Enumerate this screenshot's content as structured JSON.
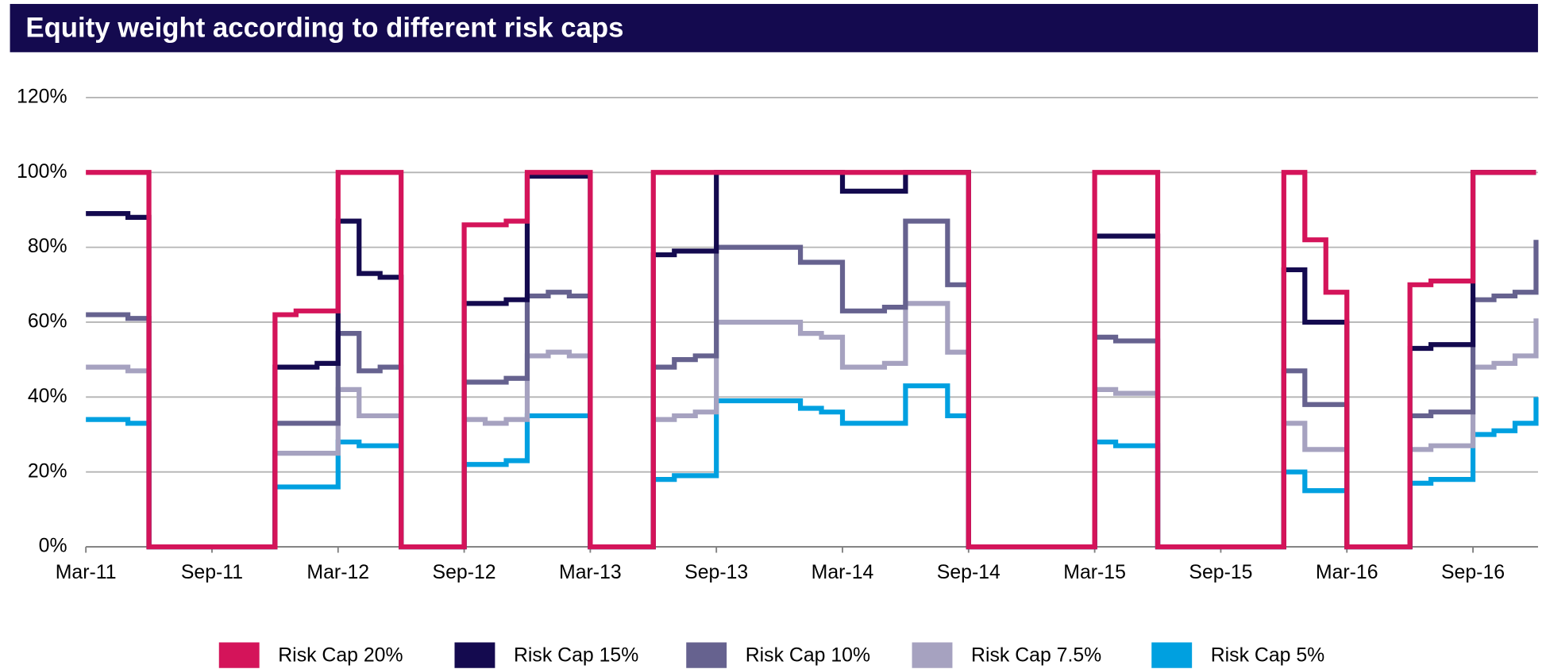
{
  "chart_data": {
    "type": "step-line",
    "title": "Equity weight according to different risk caps",
    "x": [
      "2011-03",
      "2011-04",
      "2011-05",
      "2011-06",
      "2011-07",
      "2011-08",
      "2011-09",
      "2011-10",
      "2011-11",
      "2011-12",
      "2012-01",
      "2012-02",
      "2012-03",
      "2012-04",
      "2012-05",
      "2012-06",
      "2012-07",
      "2012-08",
      "2012-09",
      "2012-10",
      "2012-11",
      "2012-12",
      "2013-01",
      "2013-02",
      "2013-03",
      "2013-04",
      "2013-05",
      "2013-06",
      "2013-07",
      "2013-08",
      "2013-09",
      "2013-10",
      "2013-11",
      "2013-12",
      "2014-01",
      "2014-02",
      "2014-03",
      "2014-04",
      "2014-05",
      "2014-06",
      "2014-07",
      "2014-08",
      "2014-09",
      "2014-10",
      "2014-11",
      "2014-12",
      "2015-01",
      "2015-02",
      "2015-03",
      "2015-04",
      "2015-05",
      "2015-06",
      "2015-07",
      "2015-08",
      "2015-09",
      "2015-10",
      "2015-11",
      "2015-12",
      "2016-01",
      "2016-02",
      "2016-03",
      "2016-04",
      "2016-05",
      "2016-06",
      "2016-07",
      "2016-08",
      "2016-09",
      "2016-10",
      "2016-11",
      "2016-12"
    ],
    "series": [
      {
        "name": "Risk Cap 20%",
        "color": "#d4145a",
        "values": [
          100,
          100,
          100,
          0,
          0,
          0,
          0,
          0,
          0,
          62,
          63,
          63,
          100,
          100,
          100,
          0,
          0,
          0,
          86,
          86,
          87,
          100,
          100,
          100,
          0,
          0,
          0,
          100,
          100,
          100,
          100,
          100,
          100,
          100,
          100,
          100,
          100,
          100,
          100,
          100,
          100,
          100,
          0,
          0,
          0,
          0,
          0,
          0,
          100,
          100,
          100,
          0,
          0,
          0,
          0,
          0,
          0,
          100,
          82,
          68,
          0,
          0,
          0,
          70,
          71,
          71,
          100,
          100,
          100,
          100
        ]
      },
      {
        "name": "Risk Cap 15%",
        "color": "#140a4f",
        "values": [
          89,
          89,
          88,
          0,
          0,
          0,
          0,
          0,
          0,
          48,
          48,
          49,
          87,
          73,
          72,
          0,
          0,
          0,
          65,
          65,
          66,
          99,
          99,
          99,
          0,
          0,
          0,
          78,
          79,
          79,
          100,
          100,
          100,
          100,
          100,
          100,
          95,
          95,
          95,
          100,
          100,
          100,
          0,
          0,
          0,
          0,
          0,
          0,
          83,
          83,
          83,
          0,
          0,
          0,
          0,
          0,
          0,
          74,
          60,
          60,
          0,
          0,
          0,
          53,
          54,
          54,
          100,
          100,
          100,
          100
        ]
      },
      {
        "name": "Risk Cap 10%",
        "color": "#66628f",
        "values": [
          62,
          62,
          61,
          0,
          0,
          0,
          0,
          0,
          0,
          33,
          33,
          33,
          57,
          47,
          48,
          0,
          0,
          0,
          44,
          44,
          45,
          67,
          68,
          67,
          0,
          0,
          0,
          48,
          50,
          51,
          80,
          80,
          80,
          80,
          76,
          76,
          63,
          63,
          64,
          87,
          87,
          70,
          0,
          0,
          0,
          0,
          0,
          0,
          56,
          55,
          55,
          0,
          0,
          0,
          0,
          0,
          0,
          47,
          38,
          38,
          0,
          0,
          0,
          35,
          36,
          36,
          66,
          67,
          68,
          82
        ]
      },
      {
        "name": "Risk Cap 7.5%",
        "color": "#a6a2c0",
        "values": [
          48,
          48,
          47,
          0,
          0,
          0,
          0,
          0,
          0,
          25,
          25,
          25,
          42,
          35,
          35,
          0,
          0,
          0,
          34,
          33,
          34,
          51,
          52,
          51,
          0,
          0,
          0,
          34,
          35,
          36,
          60,
          60,
          60,
          60,
          57,
          56,
          48,
          48,
          49,
          65,
          65,
          52,
          0,
          0,
          0,
          0,
          0,
          0,
          42,
          41,
          41,
          0,
          0,
          0,
          0,
          0,
          0,
          33,
          26,
          26,
          0,
          0,
          0,
          26,
          27,
          27,
          48,
          49,
          51,
          61
        ]
      },
      {
        "name": "Risk Cap 5%",
        "color": "#00a0e0",
        "values": [
          34,
          34,
          33,
          0,
          0,
          0,
          0,
          0,
          0,
          16,
          16,
          16,
          28,
          27,
          27,
          0,
          0,
          0,
          22,
          22,
          23,
          35,
          35,
          35,
          0,
          0,
          0,
          18,
          19,
          19,
          39,
          39,
          39,
          39,
          37,
          36,
          33,
          33,
          33,
          43,
          43,
          35,
          0,
          0,
          0,
          0,
          0,
          0,
          28,
          27,
          27,
          0,
          0,
          0,
          0,
          0,
          0,
          20,
          15,
          15,
          0,
          0,
          0,
          17,
          18,
          18,
          30,
          31,
          33,
          40
        ]
      }
    ],
    "xlim": [
      "2011-03",
      "2016-12"
    ],
    "xticks": [
      {
        "value": "2011-03",
        "label": "Mar-11"
      },
      {
        "value": "2011-09",
        "label": "Sep-11"
      },
      {
        "value": "2012-03",
        "label": "Mar-12"
      },
      {
        "value": "2012-09",
        "label": "Sep-12"
      },
      {
        "value": "2013-03",
        "label": "Mar-13"
      },
      {
        "value": "2013-09",
        "label": "Sep-13"
      },
      {
        "value": "2014-03",
        "label": "Mar-14"
      },
      {
        "value": "2014-09",
        "label": "Sep-14"
      },
      {
        "value": "2015-03",
        "label": "Mar-15"
      },
      {
        "value": "2015-09",
        "label": "Sep-15"
      },
      {
        "value": "2016-03",
        "label": "Mar-16"
      },
      {
        "value": "2016-09",
        "label": "Sep-16"
      }
    ],
    "ylim": [
      0,
      120
    ],
    "yticks": [
      {
        "value": 0,
        "label": "0%"
      },
      {
        "value": 20,
        "label": "20%"
      },
      {
        "value": 40,
        "label": "40%"
      },
      {
        "value": 60,
        "label": "60%"
      },
      {
        "value": 80,
        "label": "80%"
      },
      {
        "value": 100,
        "label": "100%"
      },
      {
        "value": 120,
        "label": "120%"
      }
    ],
    "grid": true,
    "legend": "bottom"
  }
}
